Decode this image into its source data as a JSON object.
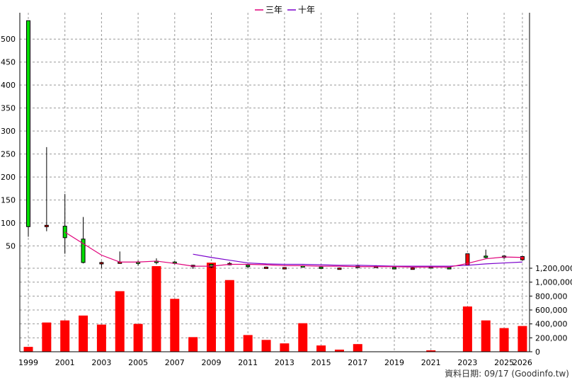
{
  "chart_data": {
    "type": "candlestick",
    "legend": {
      "position": "top-center",
      "items": [
        {
          "name": "三年",
          "color": "#e0007a"
        },
        {
          "name": "十年",
          "color": "#7a00cc"
        }
      ]
    },
    "x_tick_labels": [
      "1999",
      "2001",
      "2003",
      "2005",
      "2007",
      "2009",
      "2011",
      "2013",
      "2015",
      "2017",
      "2019",
      "2021",
      "2023",
      "2025",
      "2026"
    ],
    "price_axis": {
      "ticks": [
        50,
        100,
        150,
        200,
        250,
        300,
        350,
        400,
        450,
        500
      ],
      "ylim": [
        0,
        545
      ]
    },
    "volume_axis": {
      "ticks": [
        "0",
        "200,000",
        "400,000",
        "600,000",
        "800,000",
        "1,000,000",
        "1,200,000"
      ],
      "ylim": [
        0,
        1200000
      ]
    },
    "grid": true,
    "colors": {
      "up": "#00dd00",
      "down": "#ff0000",
      "volume": "#ff0000",
      "grid": "#999999"
    },
    "years": [
      1999,
      2000,
      2001,
      2002,
      2003,
      2004,
      2005,
      2006,
      2007,
      2008,
      2009,
      2010,
      2011,
      2012,
      2013,
      2014,
      2015,
      2016,
      2017,
      2018,
      2019,
      2020,
      2021,
      2022,
      2023,
      2024,
      2025,
      2026
    ],
    "candles": [
      {
        "open": 92,
        "high": 540,
        "low": 70,
        "close": 540
      },
      {
        "open": 95,
        "high": 265,
        "low": 82,
        "close": 92
      },
      {
        "open": 68,
        "high": 163,
        "low": 33,
        "close": 93
      },
      {
        "open": 14,
        "high": 113,
        "low": 12,
        "close": 65
      },
      {
        "open": 14,
        "high": 16,
        "low": 2,
        "close": 13
      },
      {
        "open": 15,
        "high": 38,
        "low": 13,
        "close": 14
      },
      {
        "open": 14,
        "high": 18,
        "low": 7,
        "close": 15
      },
      {
        "open": 15,
        "high": 23,
        "low": 10,
        "close": 17
      },
      {
        "open": 12,
        "high": 17,
        "low": 10,
        "close": 15
      },
      {
        "open": 8,
        "high": 9,
        "low": 0,
        "close": 5
      },
      {
        "open": 4,
        "high": 11,
        "low": 2,
        "close": 10
      },
      {
        "open": 12,
        "high": 15,
        "low": 8,
        "close": 10
      },
      {
        "open": 5,
        "high": 7,
        "low": 2,
        "close": 8
      },
      {
        "open": 4,
        "high": 5,
        "low": 1,
        "close": 3
      },
      {
        "open": 3,
        "high": 4,
        "low": 1,
        "close": 2
      },
      {
        "open": 6,
        "high": 8,
        "low": 4,
        "close": 7
      },
      {
        "open": 3,
        "high": 5,
        "low": 1,
        "close": 4
      },
      {
        "open": 2,
        "high": 3,
        "low": 0,
        "close": 1
      },
      {
        "open": 4,
        "high": 7,
        "low": 2,
        "close": 6
      },
      {
        "open": 6,
        "high": 8,
        "low": 4,
        "close": 5
      },
      {
        "open": 3,
        "high": 4,
        "low": 2,
        "close": 3
      },
      {
        "open": 2,
        "high": 3,
        "low": 0,
        "close": 1
      },
      {
        "open": 4,
        "high": 6,
        "low": 3,
        "close": 5
      },
      {
        "open": 3,
        "high": 4,
        "low": 2,
        "close": 3
      },
      {
        "open": 33,
        "high": 33,
        "low": 8,
        "close": 8
      },
      {
        "open": 25,
        "high": 42,
        "low": 23,
        "close": 28
      },
      {
        "open": 25,
        "high": 30,
        "low": 22,
        "close": 28
      },
      {
        "open": 27,
        "high": 28,
        "low": 18,
        "close": 20
      }
    ],
    "volumes": [
      70000,
      420000,
      450000,
      520000,
      390000,
      870000,
      400000,
      1230000,
      760000,
      210000,
      1280000,
      1030000,
      240000,
      170000,
      120000,
      410000,
      90000,
      30000,
      110000,
      5000,
      5000,
      5000,
      20000,
      5000,
      650000,
      450000,
      340000,
      370000
    ],
    "ma_three_year": {
      "name": "三年",
      "years": [
        2001,
        2002,
        2003,
        2004,
        2005,
        2006,
        2007,
        2008,
        2009,
        2010,
        2011,
        2012,
        2013,
        2014,
        2015,
        2016,
        2017,
        2018,
        2019,
        2020,
        2021,
        2022,
        2023,
        2024,
        2025,
        2026
      ],
      "values": [
        80,
        55,
        30,
        15,
        15,
        17,
        12,
        6,
        6,
        10,
        10,
        9,
        7,
        7,
        6,
        6,
        5,
        5,
        5,
        4,
        4,
        4,
        12,
        22,
        26,
        25
      ]
    },
    "ma_ten_year": {
      "name": "十年",
      "years": [
        2008,
        2009,
        2010,
        2011,
        2012,
        2013,
        2014,
        2015,
        2016,
        2017,
        2018,
        2019,
        2020,
        2021,
        2022,
        2023,
        2024,
        2025,
        2026
      ],
      "values": [
        32,
        25,
        19,
        13,
        11,
        10,
        10,
        9,
        8,
        8,
        7,
        6,
        6,
        6,
        6,
        8,
        11,
        13,
        15
      ]
    }
  },
  "footer": {
    "credit": "資料日期: 09/17  (Goodinfo.tw)"
  }
}
